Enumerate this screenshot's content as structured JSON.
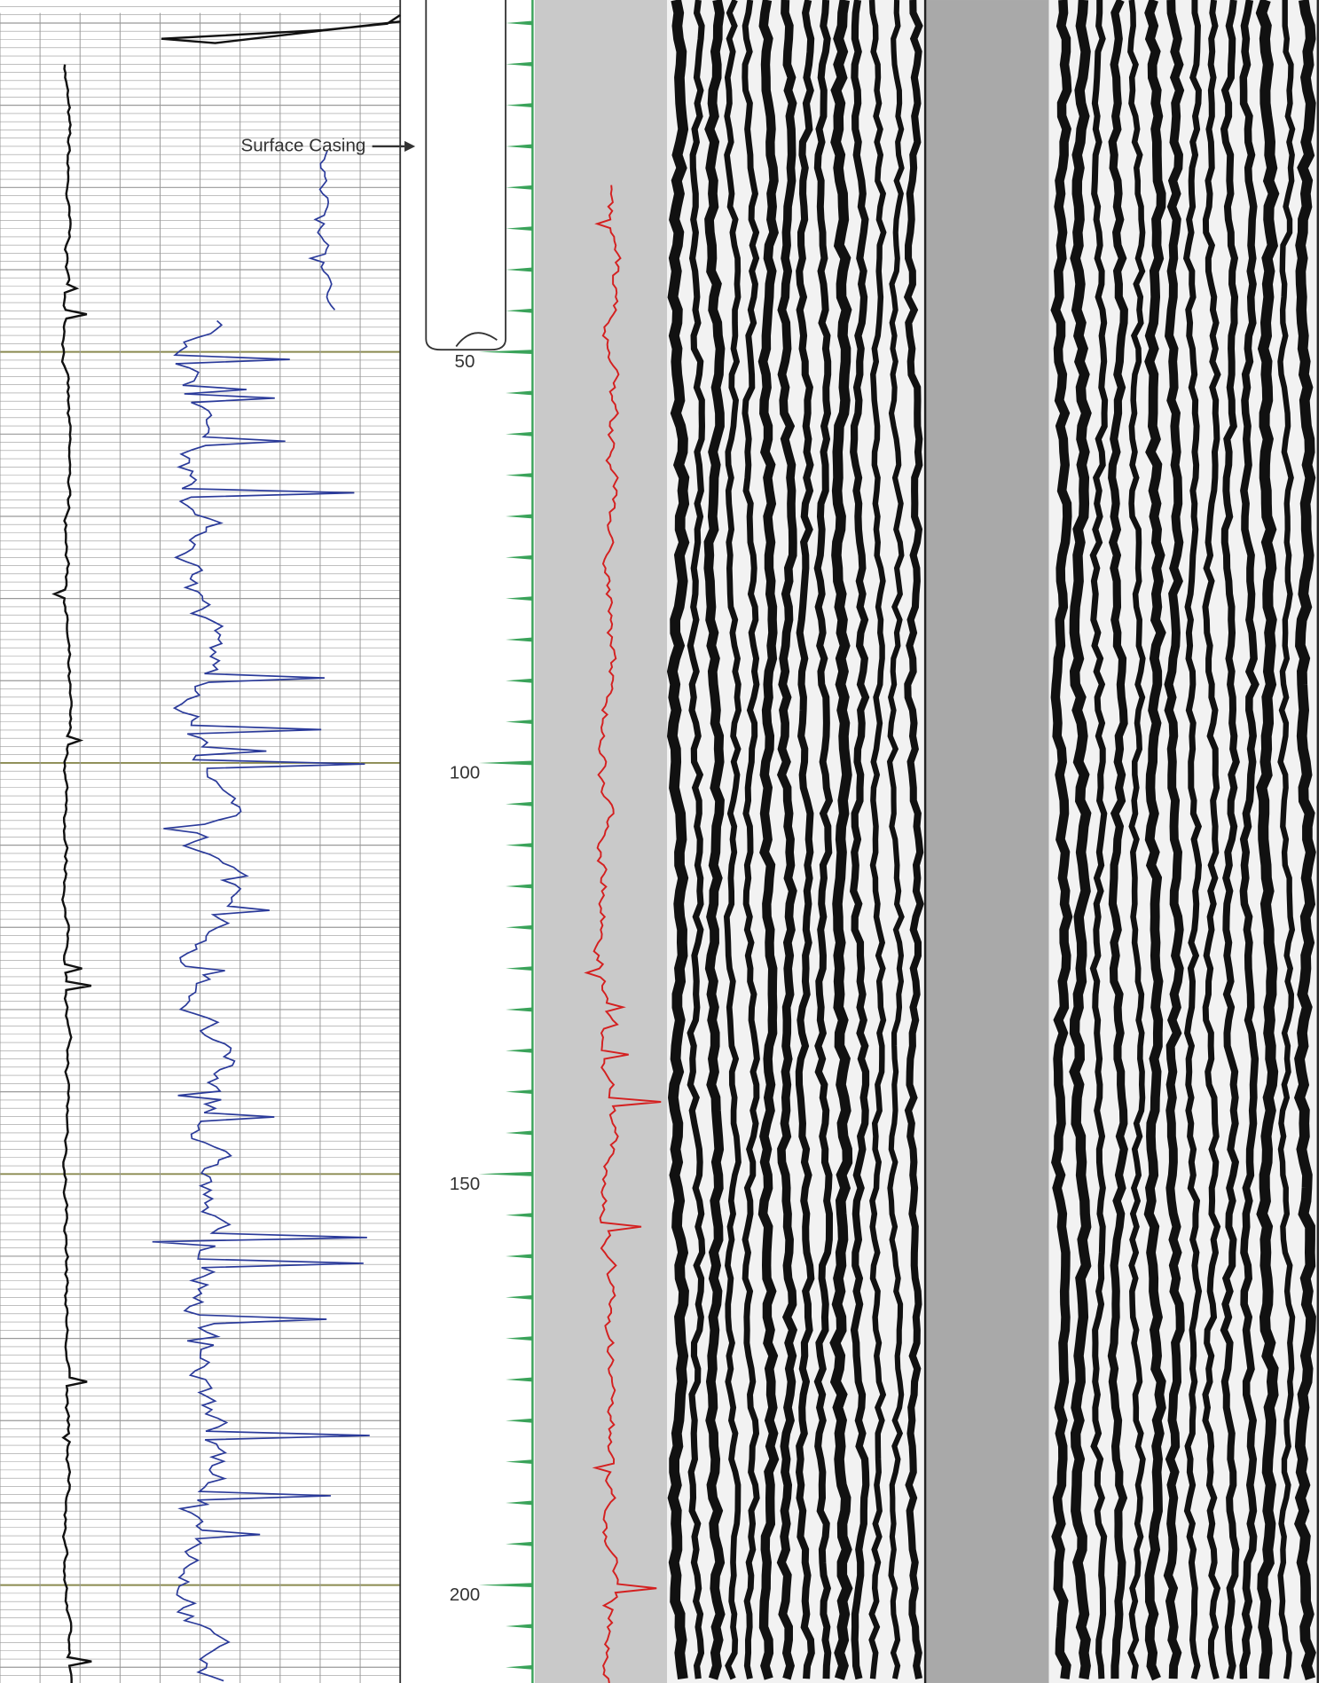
{
  "annotation": "Surface Casing",
  "depth_labels": [
    50,
    100,
    150,
    200
  ]
}
